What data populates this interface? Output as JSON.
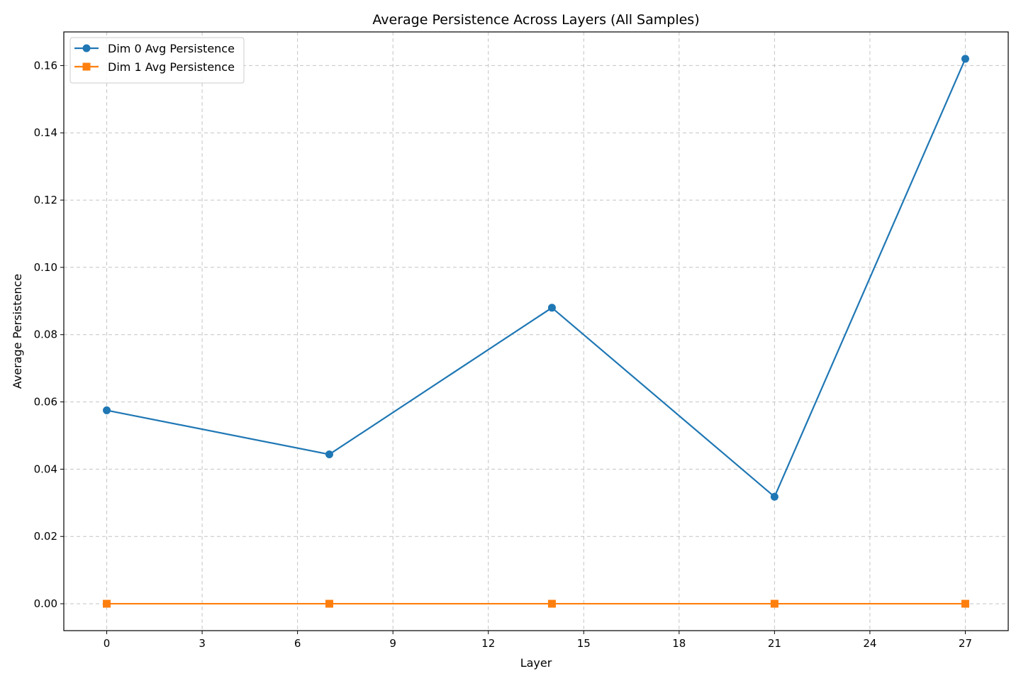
{
  "chart_data": {
    "type": "line",
    "title": "Average Persistence Across Layers (All Samples)",
    "xlabel": "Layer",
    "ylabel": "Average Persistence",
    "xlim": [
      -1.35,
      28.35
    ],
    "ylim": [
      -0.008,
      0.17
    ],
    "xticks": [
      0,
      3,
      6,
      9,
      12,
      15,
      18,
      21,
      24,
      27
    ],
    "yticks": [
      0.0,
      0.02,
      0.04,
      0.06,
      0.08,
      0.1,
      0.12,
      0.14,
      0.16
    ],
    "ytick_labels": [
      "0.00",
      "0.02",
      "0.04",
      "0.06",
      "0.08",
      "0.10",
      "0.12",
      "0.14",
      "0.16"
    ],
    "grid": true,
    "legend_position": "upper left",
    "x": [
      0,
      7,
      14,
      21,
      27
    ],
    "series": [
      {
        "name": "Dim 0 Avg Persistence",
        "values": [
          0.0575,
          0.0444,
          0.088,
          0.0318,
          0.162
        ],
        "color": "#1f77b4",
        "marker": "circle"
      },
      {
        "name": "Dim 1 Avg Persistence",
        "values": [
          0.0,
          0.0,
          0.0,
          0.0,
          0.0
        ],
        "color": "#ff7f0e",
        "marker": "square"
      }
    ]
  }
}
